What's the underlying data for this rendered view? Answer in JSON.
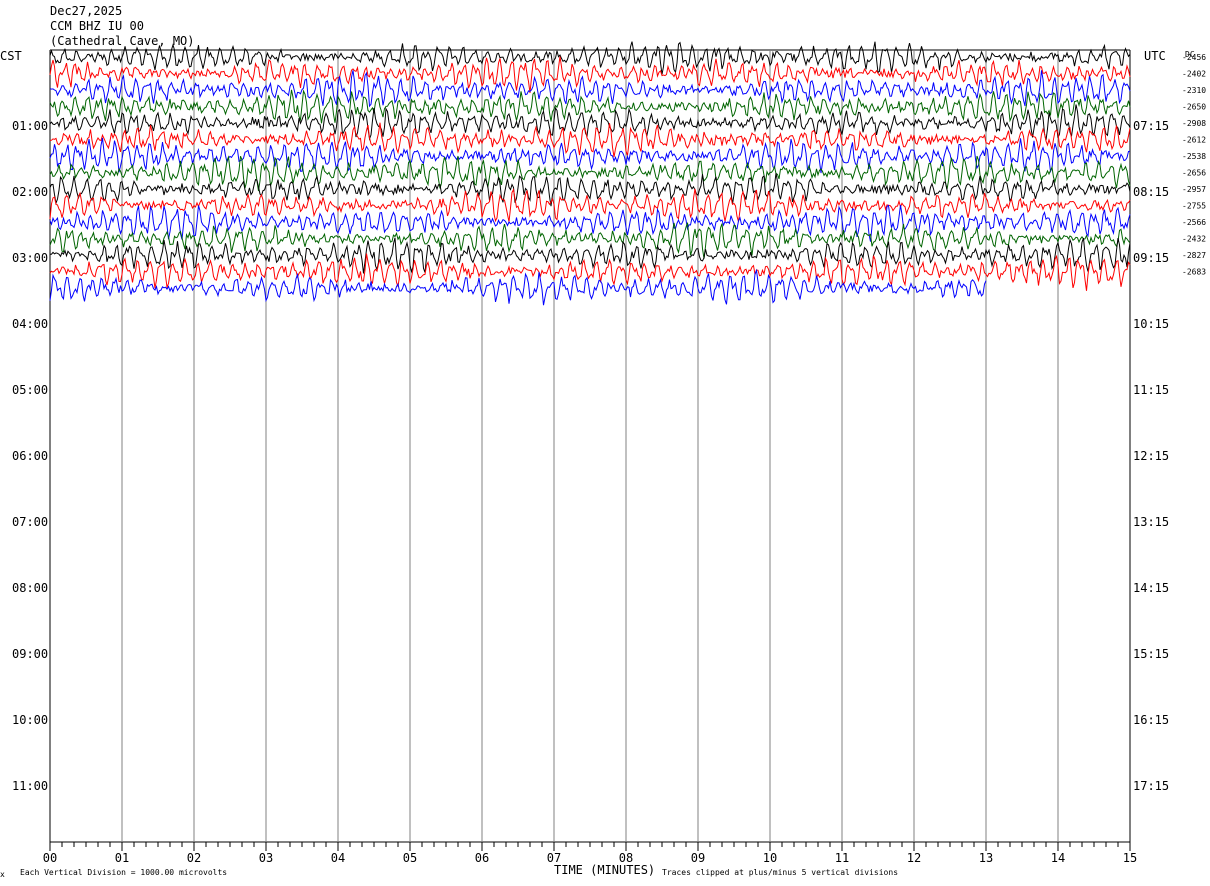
{
  "header": {
    "date": "Dec27,2025",
    "station": "CCM BHZ IU 00",
    "location": "(Cathedral Cave, MO)"
  },
  "left_zone": "CST",
  "right_zone": "UTC",
  "dc_label": "DC",
  "footer": {
    "left_mark": "x",
    "scale_note": "Each Vertical Division = 1000.00 microvolts",
    "clip_note": "Traces clipped at plus/minus 5 vertical divisions"
  },
  "chart_data": {
    "type": "line",
    "title": "",
    "xlabel": "TIME (MINUTES)",
    "x_ticks": [
      "00",
      "01",
      "02",
      "03",
      "04",
      "05",
      "06",
      "07",
      "08",
      "09",
      "10",
      "11",
      "12",
      "13",
      "14",
      "15"
    ],
    "xlim": [
      0,
      15
    ],
    "left_hour_labels": [
      "01:00",
      "02:00",
      "03:00",
      "04:00",
      "05:00",
      "06:00",
      "07:00",
      "08:00",
      "09:00",
      "10:00",
      "11:00"
    ],
    "right_hour_labels": [
      "07:15",
      "08:15",
      "09:15",
      "10:15",
      "11:15",
      "12:15",
      "13:15",
      "14:15",
      "15:15",
      "16:15",
      "17:15"
    ],
    "trace_colors": [
      "#000000",
      "#ff0000",
      "#0000ff",
      "#006400"
    ],
    "traces_per_hour": 4,
    "trace_count": 15,
    "last_trace_end_minute": 13,
    "dc_offsets": [
      "-2456",
      "-2402",
      "-2310",
      "-2650",
      "-2908",
      "-2612",
      "-2538",
      "-2656",
      "-2957",
      "-2755",
      "-2566",
      "-2432",
      "-2827",
      "-2683"
    ]
  }
}
